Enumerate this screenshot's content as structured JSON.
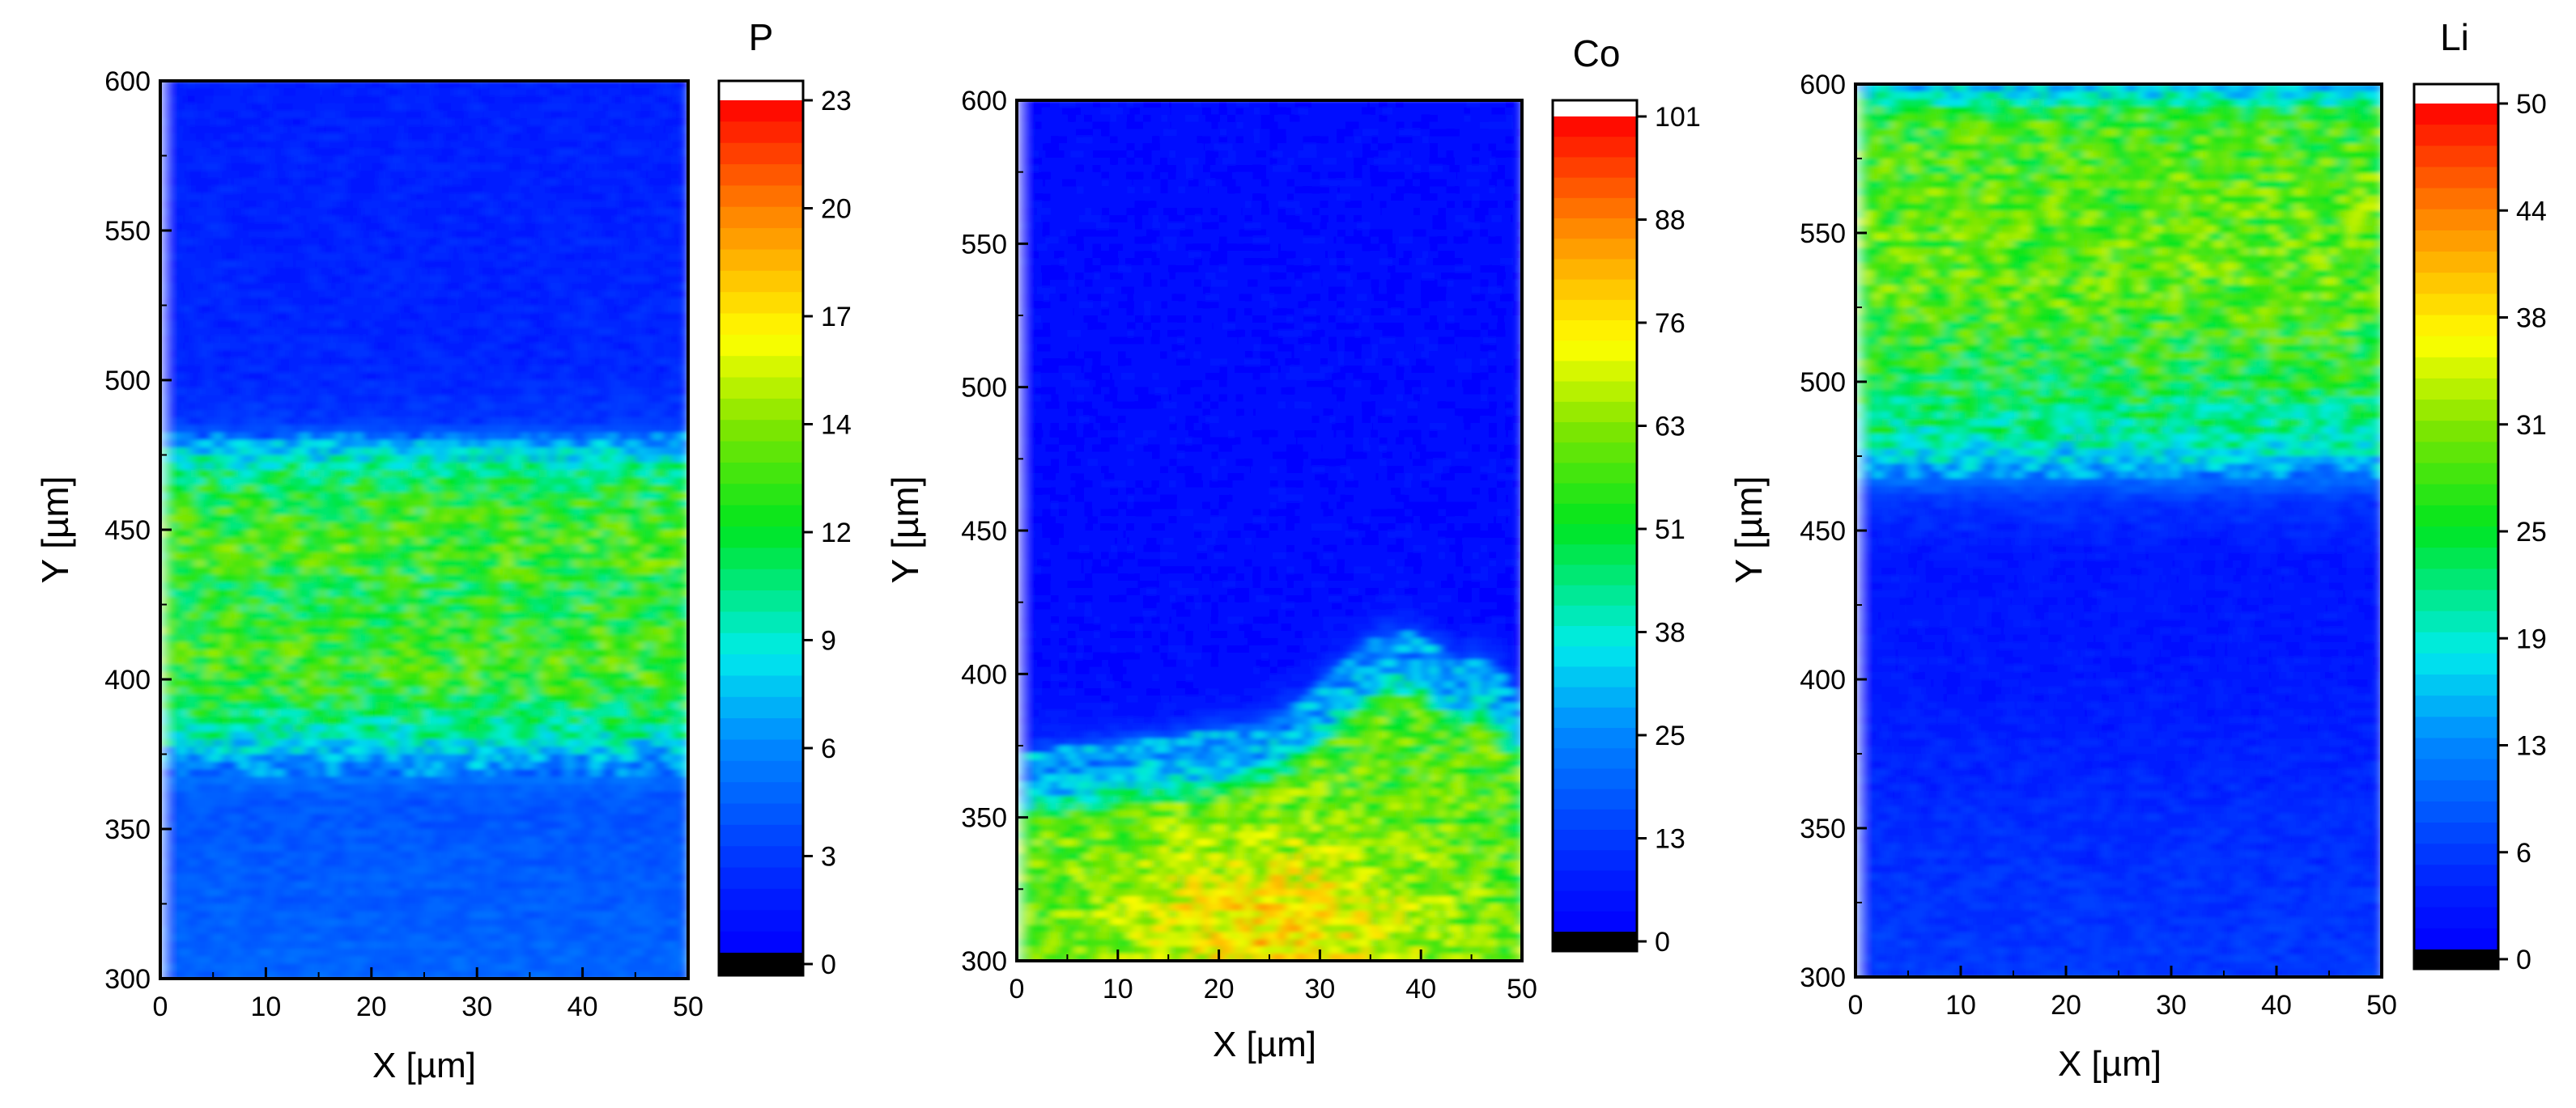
{
  "chart_data": [
    {
      "type": "heatmap",
      "element": "P",
      "title": "P",
      "xlabel": "X [µm]",
      "ylabel": "Y [µm]",
      "xlim": [
        0,
        50
      ],
      "ylim": [
        300,
        600
      ],
      "xticks": [
        "0",
        "10",
        "20",
        "30",
        "40",
        "50"
      ],
      "yticks": [
        "300",
        "350",
        "400",
        "450",
        "500",
        "550",
        "600"
      ],
      "colorbar": {
        "min": 0,
        "max": 23,
        "ticks": [
          "0",
          "3",
          "6",
          "9",
          "12",
          "14",
          "17",
          "20",
          "23"
        ]
      },
      "profile": {
        "description": "P-rich band between Y≈375 and Y≈480 µm",
        "y": [
          300,
          330,
          360,
          374,
          380,
          395,
          405,
          420,
          430,
          440,
          450,
          460,
          470,
          478,
          485,
          500,
          550,
          600
        ],
        "mean": [
          4.2,
          3.9,
          3.6,
          5.8,
          8.6,
          11.5,
          12.2,
          11.8,
          11.0,
          12.4,
          12.0,
          11.4,
          9.8,
          6.5,
          2.5,
          1.8,
          1.6,
          1.5
        ]
      }
    },
    {
      "type": "heatmap",
      "element": "Co",
      "title": "Co",
      "xlabel": "X [µm]",
      "ylabel": "Y [µm]",
      "xlim": [
        0,
        50
      ],
      "ylim": [
        300,
        600
      ],
      "xticks": [
        "0",
        "10",
        "20",
        "30",
        "40",
        "50"
      ],
      "yticks": [
        "300",
        "350",
        "400",
        "450",
        "500",
        "550",
        "600"
      ],
      "colorbar": {
        "min": 0,
        "max": 101,
        "ticks": [
          "0",
          "13",
          "25",
          "38",
          "51",
          "63",
          "76",
          "88",
          "101"
        ]
      },
      "profile": {
        "description": "Co-rich region below an interface at Y≈370–420 µm",
        "y": [
          300,
          320,
          340,
          360,
          380,
          400,
          420,
          440,
          500,
          600
        ],
        "mean": [
          72,
          70,
          62,
          57,
          40,
          8,
          4,
          3,
          2,
          2
        ]
      }
    },
    {
      "type": "heatmap",
      "element": "Li",
      "title": "Li",
      "xlabel": "X [µm]",
      "ylabel": "Y [µm]",
      "xlim": [
        0,
        50
      ],
      "ylim": [
        300,
        600
      ],
      "xticks": [
        "0",
        "10",
        "20",
        "30",
        "40",
        "50"
      ],
      "yticks": [
        "300",
        "350",
        "400",
        "450",
        "500",
        "550",
        "600"
      ],
      "colorbar": {
        "min": 0,
        "max": 50,
        "ticks": [
          "0",
          "6",
          "13",
          "19",
          "25",
          "31",
          "38",
          "44",
          "50"
        ]
      },
      "profile": {
        "description": "Li-rich layer above Y≈470 µm",
        "y": [
          300,
          350,
          400,
          440,
          460,
          470,
          480,
          500,
          530,
          560,
          590,
          598
        ],
        "mean": [
          5.5,
          4.5,
          2.5,
          2.2,
          5,
          12,
          20,
          24,
          28,
          28,
          26,
          15
        ]
      }
    }
  ]
}
